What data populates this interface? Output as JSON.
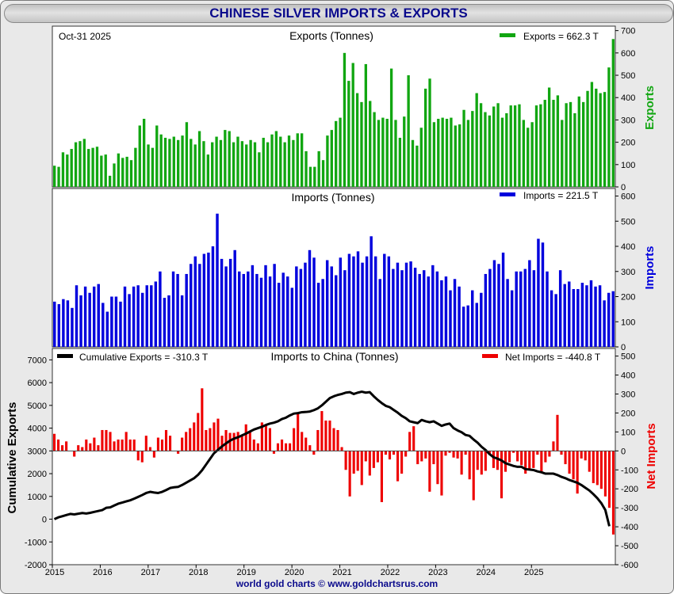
{
  "page": {
    "title": "CHINESE SILVER IMPORTS & EXPORTS",
    "footer": "world gold charts © www.goldchartsrus.com",
    "date": "Oct-31  2025"
  },
  "colors": {
    "exports": "#11a611",
    "imports": "#0000dd",
    "net": "#ee0000",
    "cumulative": "#000000",
    "title": "#0a0a8c"
  },
  "chart_data": [
    {
      "type": "bar",
      "title": "Exports (Tonnes)",
      "legend": "Exports = 662.3 T",
      "ylabel": "Exports",
      "ylim": [
        0,
        720
      ],
      "yticks": [
        0,
        100,
        200,
        300,
        400,
        500,
        600,
        700
      ],
      "series": [
        {
          "name": "Exports",
          "values": [
            95,
            90,
            155,
            145,
            170,
            200,
            205,
            215,
            170,
            175,
            180,
            140,
            145,
            50,
            105,
            150,
            130,
            135,
            120,
            175,
            275,
            305,
            190,
            175,
            275,
            235,
            220,
            215,
            225,
            210,
            230,
            290,
            215,
            190,
            250,
            205,
            145,
            200,
            225,
            210,
            255,
            250,
            200,
            225,
            205,
            190,
            210,
            200,
            155,
            220,
            200,
            235,
            250,
            225,
            200,
            230,
            210,
            240,
            240,
            160,
            90,
            90,
            160,
            120,
            230,
            255,
            295,
            310,
            600,
            475,
            555,
            420,
            380,
            550,
            385,
            335,
            300,
            310,
            305,
            530,
            300,
            220,
            315,
            500,
            210,
            185,
            265,
            440,
            485,
            290,
            305,
            310,
            305,
            310,
            275,
            280,
            345,
            300,
            340,
            420,
            375,
            335,
            320,
            360,
            375,
            310,
            330,
            365,
            365,
            370,
            300,
            265,
            290,
            365,
            370,
            390,
            445,
            390,
            410,
            300,
            375,
            380,
            330,
            405,
            380,
            430,
            470,
            440,
            420,
            425,
            535,
            662.3
          ]
        }
      ]
    },
    {
      "type": "bar",
      "title": "Imports (Tonnes)",
      "legend": "Imports = 221.5 T",
      "ylabel": "Imports",
      "ylim": [
        0,
        630
      ],
      "yticks": [
        0,
        100,
        200,
        300,
        400,
        500,
        600
      ],
      "series": [
        {
          "name": "Imports",
          "values": [
            180,
            170,
            190,
            185,
            155,
            245,
            205,
            240,
            215,
            240,
            250,
            175,
            140,
            200,
            200,
            180,
            240,
            210,
            240,
            245,
            215,
            245,
            245,
            260,
            300,
            195,
            205,
            300,
            290,
            205,
            290,
            330,
            360,
            330,
            370,
            375,
            400,
            530,
            350,
            320,
            350,
            385,
            300,
            290,
            300,
            325,
            290,
            275,
            325,
            280,
            330,
            255,
            295,
            280,
            235,
            320,
            310,
            335,
            385,
            355,
            255,
            270,
            345,
            320,
            285,
            355,
            305,
            370,
            360,
            380,
            335,
            360,
            440,
            360,
            270,
            370,
            360,
            310,
            335,
            305,
            335,
            340,
            315,
            290,
            305,
            280,
            325,
            300,
            265,
            280,
            225,
            270,
            240,
            160,
            165,
            225,
            175,
            215,
            290,
            310,
            345,
            330,
            375,
            270,
            225,
            300,
            300,
            310,
            345,
            305,
            430,
            415,
            300,
            225,
            210,
            305,
            250,
            260,
            230,
            230,
            255,
            245,
            265,
            240,
            245,
            185,
            215,
            221.5
          ]
        }
      ]
    },
    {
      "type": "bar+line",
      "title": "Imports to China (Tonnes)",
      "legend_left": "Cumulative Exports  = -310.3 T",
      "legend_right": "Net Imports = -440.8 T",
      "ylabel_left": "Cumulative Exports",
      "ylabel_right": "Net Imports",
      "ylim_left": [
        -2000,
        7500
      ],
      "ylim_right": [
        -600,
        540
      ],
      "yticks_left": [
        -2000,
        -1000,
        0,
        1000,
        2000,
        3000,
        4000,
        5000,
        6000,
        7000
      ],
      "yticks_right": [
        -600,
        -500,
        -400,
        -300,
        -200,
        -100,
        0,
        100,
        200,
        300,
        400,
        500
      ],
      "x_labels": [
        "2015",
        "2016",
        "2017",
        "2018",
        "2019",
        "2020",
        "2021",
        "2022",
        "2023",
        "2024",
        "2025"
      ],
      "series": [
        {
          "name": "Net Imports",
          "values": [
            90,
            60,
            30,
            50,
            0,
            -30,
            30,
            20,
            60,
            40,
            70,
            30,
            110,
            110,
            100,
            50,
            60,
            60,
            100,
            60,
            60,
            -50,
            -60,
            80,
            20,
            -35,
            70,
            60,
            110,
            80,
            0,
            -15,
            70,
            100,
            120,
            150,
            200,
            330,
            110,
            120,
            150,
            170,
            80,
            110,
            95,
            95,
            100,
            80,
            140,
            100,
            60,
            40,
            150,
            140,
            120,
            -15,
            40,
            60,
            40,
            40,
            120,
            200,
            100,
            70,
            30,
            -20,
            110,
            210,
            160,
            160,
            120,
            110,
            20,
            -100,
            -240,
            -120,
            -105,
            -180,
            -55,
            -130,
            -90,
            -60,
            -270,
            -20,
            -45,
            -20,
            -160,
            -120,
            -30,
            100,
            130,
            -70,
            -55,
            -40,
            -215,
            -70,
            -175,
            -235,
            -25,
            -10,
            -35,
            -40,
            -125,
            -20,
            -150,
            -260,
            -100,
            -125,
            -105,
            -20,
            -90,
            -100,
            -250,
            -110,
            -60,
            -10,
            -55,
            -75,
            -120,
            -95,
            -90,
            -20,
            -110,
            -60,
            -30,
            50,
            190,
            -20,
            -70,
            -120,
            -150,
            -225,
            -40,
            -50,
            -110,
            -170,
            -180,
            -200,
            -240,
            -300,
            -440.8
          ]
        },
        {
          "name": "Cumulative Exports",
          "values": [
            0,
            80,
            130,
            180,
            230,
            210,
            240,
            270,
            250,
            280,
            320,
            360,
            400,
            500,
            520,
            600,
            680,
            730,
            780,
            830,
            900,
            980,
            1060,
            1150,
            1200,
            1170,
            1150,
            1200,
            1280,
            1370,
            1400,
            1420,
            1500,
            1600,
            1700,
            1800,
            1950,
            2150,
            2400,
            2650,
            2900,
            3050,
            3200,
            3330,
            3450,
            3540,
            3600,
            3680,
            3760,
            3850,
            3940,
            4000,
            4060,
            4140,
            4200,
            4240,
            4300,
            4400,
            4460,
            4560,
            4640,
            4660,
            4700,
            4710,
            4730,
            4790,
            4870,
            5000,
            5160,
            5320,
            5400,
            5460,
            5500,
            5560,
            5580,
            5500,
            5560,
            5600,
            5560,
            5580,
            5400,
            5240,
            5100,
            4980,
            4920,
            4800,
            4680,
            4540,
            4440,
            4300,
            4260,
            4220,
            4360,
            4300,
            4260,
            4300,
            4200,
            4100,
            4160,
            4200,
            4000,
            3900,
            3820,
            3700,
            3660,
            3500,
            3360,
            3180,
            3040,
            2860,
            2720,
            2660,
            2580,
            2460,
            2400,
            2340,
            2300,
            2300,
            2200,
            2180,
            2160,
            2100,
            2060,
            2000,
            2000,
            2000,
            1940,
            1860,
            1800,
            1720,
            1660,
            1600,
            1500,
            1380,
            1260,
            1100,
            920,
            700,
            400,
            -310.3
          ]
        }
      ]
    }
  ]
}
